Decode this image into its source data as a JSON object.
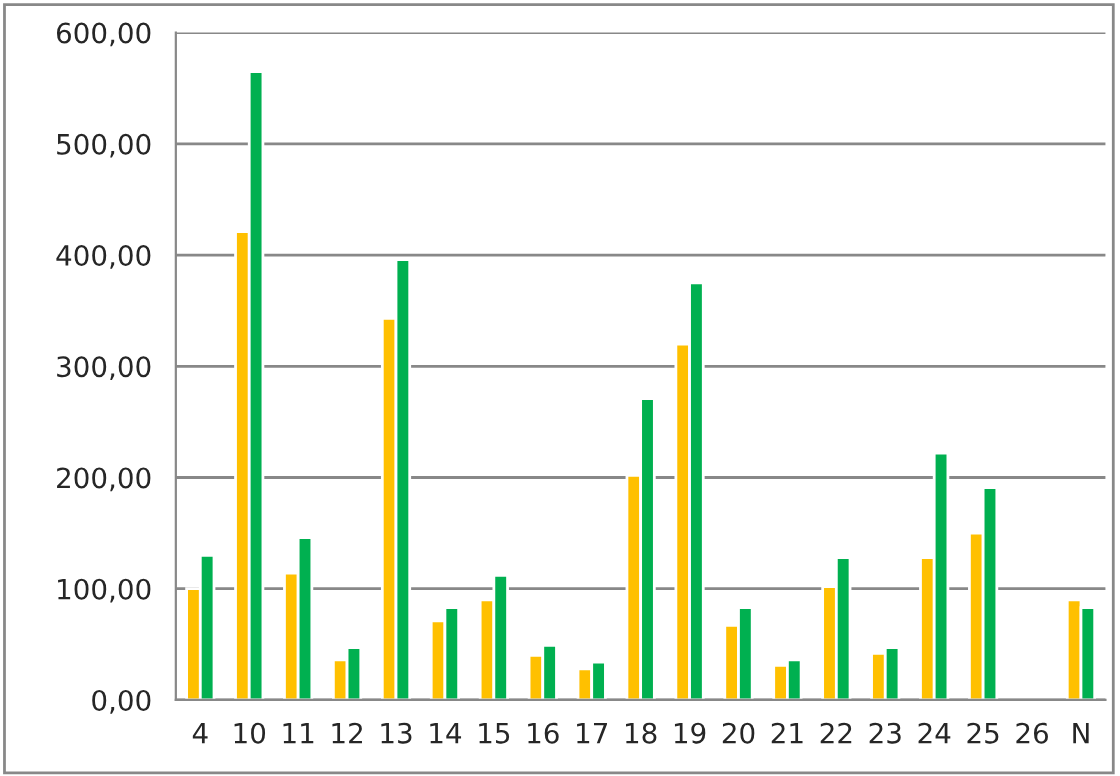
{
  "chart_data": {
    "type": "bar",
    "categories": [
      "4",
      "10",
      "11",
      "12",
      "13",
      "14",
      "15",
      "16",
      "17",
      "18",
      "19",
      "20",
      "21",
      "22",
      "23",
      "24",
      "25",
      "26",
      "N"
    ],
    "series": [
      {
        "color": "#ffc000",
        "values": [
          100,
          421,
          114,
          36,
          343,
          71,
          90,
          40,
          28,
          202,
          320,
          67,
          31,
          102,
          42,
          128,
          150,
          null,
          90
        ]
      },
      {
        "color": "#00b050",
        "values": [
          130,
          565,
          146,
          47,
          396,
          83,
          112,
          49,
          34,
          271,
          375,
          83,
          36,
          128,
          47,
          222,
          191,
          null,
          83
        ]
      }
    ],
    "ylim": [
      0,
      600
    ],
    "yticks": [
      {
        "value": 0,
        "label": "0,00"
      },
      {
        "value": 100,
        "label": "100,00"
      },
      {
        "value": 200,
        "label": "200,00"
      },
      {
        "value": 300,
        "label": "300,00"
      },
      {
        "value": 400,
        "label": "400,00"
      },
      {
        "value": 500,
        "label": "500,00"
      },
      {
        "value": 600,
        "label": "600,00"
      }
    ],
    "grid": "y",
    "legend": false
  }
}
